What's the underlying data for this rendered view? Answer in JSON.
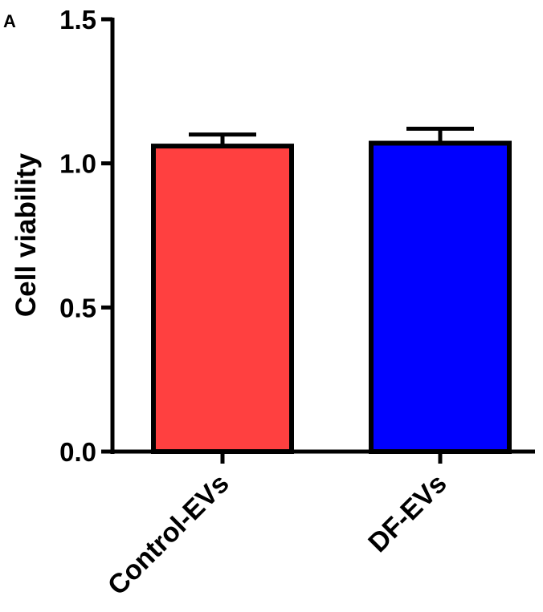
{
  "panel_label": "A",
  "chart_data": {
    "type": "bar",
    "ylabel": "Cell viability",
    "xlabel": "",
    "ylim": [
      0,
      1.5
    ],
    "yticks": [
      "0.0",
      "0.5",
      "1.0",
      "1.5"
    ],
    "categories": [
      "Control-EVs",
      "DF-EVs"
    ],
    "values": [
      1.06,
      1.07
    ],
    "errors": [
      0.04,
      0.05
    ],
    "colors": [
      "#FF4040",
      "#0000FF"
    ],
    "grid": false,
    "legend": "none"
  }
}
